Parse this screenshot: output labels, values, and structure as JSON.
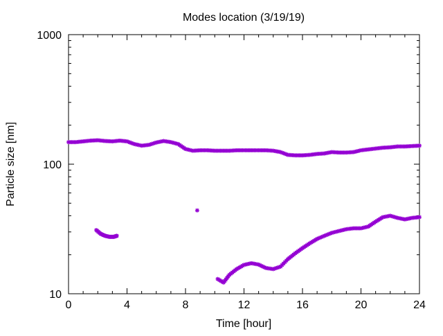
{
  "chart_data": {
    "type": "scatter",
    "title": "Modes location (3/19/19)",
    "xlabel": "Time [hour]",
    "ylabel": "Particle size [nm]",
    "xlim": [
      0,
      24
    ],
    "ylim": [
      10,
      1000
    ],
    "yscale": "log",
    "grid": false,
    "legend": "none",
    "xticks": [
      {
        "value": 0,
        "label": "0"
      },
      {
        "value": 4,
        "label": "4"
      },
      {
        "value": 8,
        "label": "8"
      },
      {
        "value": 12,
        "label": "12"
      },
      {
        "value": 16,
        "label": "16"
      },
      {
        "value": 20,
        "label": "20"
      },
      {
        "value": 24,
        "label": "24"
      }
    ],
    "yticks": [
      {
        "value": 10,
        "label": "10"
      },
      {
        "value": 100,
        "label": "100"
      },
      {
        "value": 1000,
        "label": "1000"
      }
    ],
    "marker_color": "#9400d3",
    "marker": "star",
    "series": [
      {
        "x": [
          0,
          0.5,
          1,
          1.5,
          2,
          2.5,
          3,
          3.5,
          4,
          4.5,
          5,
          5.5,
          6,
          6.5,
          7,
          7.5,
          8,
          8.5,
          9,
          9.5,
          10,
          10.5,
          11,
          11.5,
          12,
          12.5,
          13,
          13.5,
          14,
          14.5,
          15,
          15.5,
          16,
          16.5,
          17,
          17.5,
          18,
          18.5,
          19,
          19.5,
          20,
          20.5,
          21,
          21.5,
          22,
          22.5,
          23,
          23.5,
          24
        ],
        "y": [
          148,
          148,
          150,
          152,
          153,
          151,
          150,
          152,
          150,
          143,
          139,
          141,
          147,
          151,
          148,
          143,
          131,
          127,
          128,
          128,
          127,
          127,
          127,
          128,
          128,
          128,
          128,
          128,
          127,
          124,
          118,
          117,
          117,
          118,
          120,
          121,
          124,
          123,
          123,
          124,
          128,
          130,
          132,
          134,
          135,
          137,
          137,
          138,
          139
        ]
      },
      {
        "x": [
          1.9,
          2.2,
          2.5,
          2.8,
          3.1,
          3.3,
          8.8,
          10.2,
          10.6,
          11,
          11.5,
          12,
          12.5,
          13,
          13.5,
          14,
          14.5,
          15,
          15.5,
          16,
          16.5,
          17,
          17.5,
          18,
          18.5,
          19,
          19.5,
          20,
          20.5,
          21,
          21.5,
          22,
          22.5,
          23,
          23.5,
          24
        ],
        "y": [
          31,
          29,
          28,
          27.5,
          27.5,
          28,
          44,
          13,
          12.2,
          14,
          15.5,
          16.7,
          17.2,
          16.8,
          15.8,
          15.5,
          16.2,
          18.5,
          20.5,
          22.5,
          24.5,
          26.5,
          28,
          29.5,
          30.5,
          31.5,
          32,
          32,
          33,
          36,
          39,
          40,
          38.5,
          37.5,
          38.5,
          39
        ]
      }
    ]
  }
}
